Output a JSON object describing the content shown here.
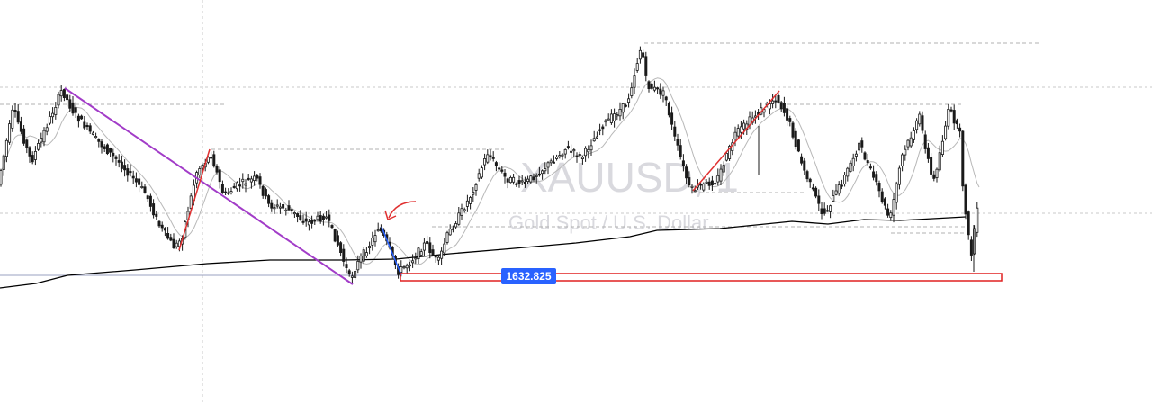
{
  "watermark": {
    "symbol": "XAUUSD, 1",
    "description": "Gold Spot / U.S. Dollar"
  },
  "price_label": {
    "value": "1632.825",
    "color": "#2962ff"
  },
  "colors": {
    "candle": "#1a1a1a",
    "ma_slow": "#000000",
    "ma_fast": "#b8b8b8",
    "trend_purple": "#a23cc8",
    "trend_red": "#e03030",
    "trend_blue": "#2962ff",
    "zone_border": "#e02020",
    "grid_dash": "#b0b0b0",
    "level_line": "#9aa0c0",
    "arrow": "#e03030"
  },
  "chart_data": {
    "type": "candlestick",
    "symbol": "XAUUSD, 1",
    "title": "Gold Spot / U.S. Dollar",
    "price_label": 1632.825,
    "grid": true,
    "series": [
      {
        "name": "",
        "kind": "close",
        "values": []
      }
    ],
    "annotations": [
      {
        "kind": "support-zone",
        "label": "1632.825"
      },
      {
        "kind": "trendline",
        "color": "purple"
      },
      {
        "kind": "trendline",
        "color": "red"
      },
      {
        "kind": "trendline",
        "color": "blue"
      },
      {
        "kind": "curved-arrow",
        "color": "red"
      }
    ]
  }
}
